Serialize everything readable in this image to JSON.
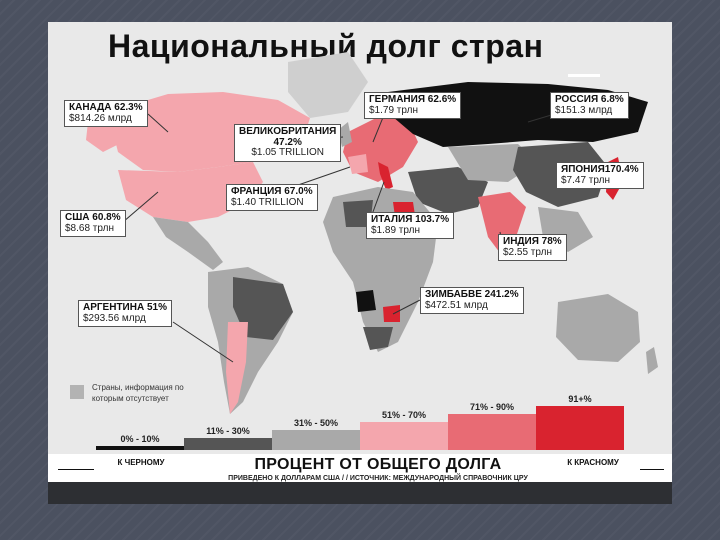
{
  "title": "Национальный долг стран",
  "callouts": {
    "canada": {
      "name": "КАНАДА 62.3%",
      "value": "$814.26 млрд"
    },
    "uk": {
      "name": "ВЕЛИКОБРИТАНИЯ",
      "pct": "47.2%",
      "value": "$1.05 TRILLION"
    },
    "germany": {
      "name": "ГЕРМАНИЯ 62.6%",
      "value": "$1.79 трлн"
    },
    "russia": {
      "name": "РОССИЯ 6.8%",
      "value": "$151.3 млрд"
    },
    "japan": {
      "name": "ЯПОНИЯ170.4%",
      "value": "$7.47 трлн"
    },
    "france": {
      "name": "ФРАНЦИЯ 67.0%",
      "value": "$1.40 TRILLION"
    },
    "usa": {
      "name": "США 60.8%",
      "value": "$8.68 трлн"
    },
    "italy": {
      "name": "ИТАЛИЯ 103.7%",
      "value": "$1.89 трлн"
    },
    "india": {
      "name": "ИНДИЯ 78%",
      "value": "$2.55 трлн"
    },
    "zimbabwe": {
      "name": "ЗИМБАБВЕ 241.2%",
      "value": "$472.51 млрд"
    },
    "argentina": {
      "name": "АРГЕНТИНА 51%",
      "value": "$293.56 млрд"
    }
  },
  "legend": {
    "missing": "Страны, информация по которым отсутствует"
  },
  "scale": {
    "ranges": [
      "0% - 10%",
      "11% - 30%",
      "31% - 50%",
      "51% - 70%",
      "71% - 90%",
      "91+%"
    ],
    "colors": [
      "#111111",
      "#555555",
      "#a9a9a9",
      "#f4a6ad",
      "#e86b74",
      "#d9232f"
    ],
    "left_end": "К ЧЕРНОМУ",
    "right_end": "К КРАСНОМУ"
  },
  "footer": {
    "title": "ПРОЦЕНТ ОТ ОБЩЕГО ДОЛГА",
    "subtitle": "ПРИВЕДЕНО К ДОЛЛАРАМ США  /  /  ИСТОЧНИК: МЕЖДУНАРОДНЫЙ СПРАВОЧНИК ЦРУ"
  }
}
